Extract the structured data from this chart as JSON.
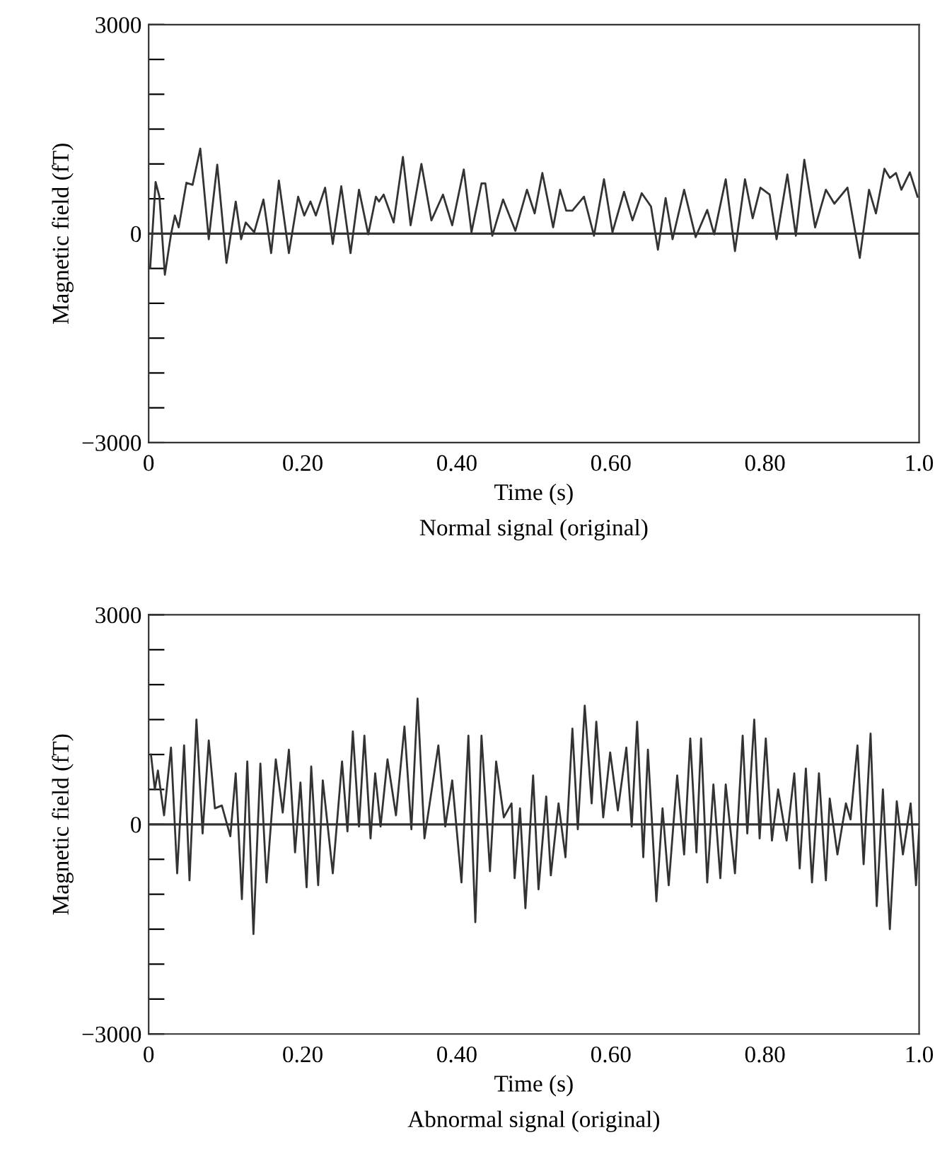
{
  "chart_data": [
    {
      "type": "line",
      "title": "Normal signal (original)",
      "xlabel": "Time (s)",
      "ylabel": "Magnetic field (fT)",
      "xlim": [
        0,
        1.0
      ],
      "ylim": [
        -3000,
        3000
      ],
      "xticks": [
        0,
        {
          "value": 0.2,
          "label": "0.20"
        },
        {
          "value": 0.4,
          "label": "0.40"
        },
        {
          "value": 0.6,
          "label": "0.60"
        },
        {
          "value": 0.8,
          "label": "0.80"
        },
        {
          "value": 1.0,
          "label": "1.0"
        }
      ],
      "yticks": [
        {
          "value": -3000,
          "label": "−3000"
        },
        {
          "value": -2500,
          "label": null
        },
        {
          "value": -2000,
          "label": null
        },
        {
          "value": -1500,
          "label": null
        },
        {
          "value": -1000,
          "label": null
        },
        {
          "value": -500,
          "label": null
        },
        0,
        {
          "value": 500,
          "label": null
        },
        {
          "value": 1000,
          "label": null
        },
        {
          "value": 1500,
          "label": null
        },
        {
          "value": 2000,
          "label": null
        },
        {
          "value": 2500,
          "label": null
        },
        3000
      ],
      "grid": false,
      "marker": "none",
      "line_style": "solid",
      "ref_lines": [
        {
          "axis": "y",
          "value": 0,
          "color": "#333333"
        }
      ],
      "series": [
        {
          "color": "#333333",
          "x": [
            0.002,
            0.009,
            0.014,
            0.021,
            0.029,
            0.034,
            0.039,
            0.049,
            0.057,
            0.067,
            0.078,
            0.089,
            0.101,
            0.113,
            0.12,
            0.126,
            0.137,
            0.149,
            0.159,
            0.169,
            0.182,
            0.194,
            0.202,
            0.21,
            0.217,
            0.229,
            0.239,
            0.25,
            0.262,
            0.273,
            0.285,
            0.295,
            0.299,
            0.305,
            0.318,
            0.33,
            0.34,
            0.354,
            0.367,
            0.382,
            0.394,
            0.409,
            0.419,
            0.432,
            0.437,
            0.446,
            0.46,
            0.476,
            0.491,
            0.501,
            0.511,
            0.525,
            0.534,
            0.542,
            0.55,
            0.565,
            0.578,
            0.591,
            0.602,
            0.617,
            0.628,
            0.64,
            0.652,
            0.661,
            0.671,
            0.68,
            0.695,
            0.71,
            0.725,
            0.734,
            0.749,
            0.761,
            0.774,
            0.784,
            0.794,
            0.806,
            0.815,
            0.829,
            0.84,
            0.851,
            0.865,
            0.879,
            0.89,
            0.907,
            0.923,
            0.935,
            0.944,
            0.955,
            0.962,
            0.97,
            0.977,
            0.988,
            0.998
          ],
          "values": [
            -490,
            740,
            530,
            -590,
            -10,
            260,
            90,
            730,
            700,
            1220,
            -80,
            990,
            -420,
            460,
            -80,
            160,
            20,
            490,
            -280,
            760,
            -280,
            530,
            260,
            460,
            260,
            660,
            -150,
            680,
            -280,
            630,
            -10,
            530,
            460,
            560,
            160,
            1100,
            120,
            1000,
            190,
            560,
            120,
            920,
            20,
            720,
            720,
            -30,
            490,
            40,
            630,
            290,
            870,
            90,
            630,
            330,
            330,
            530,
            -30,
            780,
            20,
            600,
            190,
            580,
            390,
            -230,
            510,
            -80,
            630,
            -50,
            340,
            -10,
            780,
            -250,
            780,
            220,
            660,
            560,
            -80,
            850,
            -30,
            1060,
            90,
            630,
            430,
            660,
            -350,
            630,
            290,
            930,
            800,
            870,
            630,
            880,
            530
          ]
        }
      ]
    },
    {
      "type": "line",
      "title": "Abnormal signal (original)",
      "xlabel": "Time (s)",
      "ylabel": "Magnetic field (fT)",
      "xlim": [
        0,
        1.0
      ],
      "ylim": [
        -3000,
        3000
      ],
      "xticks": [
        0,
        {
          "value": 0.2,
          "label": "0.20"
        },
        {
          "value": 0.4,
          "label": "0.40"
        },
        {
          "value": 0.6,
          "label": "0.60"
        },
        {
          "value": 0.8,
          "label": "0.80"
        },
        {
          "value": 1.0,
          "label": "1.0"
        }
      ],
      "yticks": [
        {
          "value": -3000,
          "label": "−3000"
        },
        {
          "value": -2500,
          "label": null
        },
        {
          "value": -2000,
          "label": null
        },
        {
          "value": -1500,
          "label": null
        },
        {
          "value": -1000,
          "label": null
        },
        {
          "value": -500,
          "label": null
        },
        0,
        {
          "value": 500,
          "label": null
        },
        {
          "value": 1000,
          "label": null
        },
        {
          "value": 1500,
          "label": null
        },
        {
          "value": 2000,
          "label": null
        },
        {
          "value": 2500,
          "label": null
        },
        3000
      ],
      "grid": false,
      "marker": "none",
      "line_style": "solid",
      "ref_lines": [
        {
          "axis": "y",
          "value": 0,
          "color": "#333333"
        }
      ],
      "series": [
        {
          "color": "#333333",
          "x": [
            0.003,
            0.008,
            0.012,
            0.02,
            0.029,
            0.037,
            0.046,
            0.053,
            0.062,
            0.07,
            0.078,
            0.086,
            0.095,
            0.106,
            0.113,
            0.121,
            0.128,
            0.136,
            0.145,
            0.153,
            0.165,
            0.174,
            0.182,
            0.19,
            0.197,
            0.205,
            0.211,
            0.22,
            0.226,
            0.239,
            0.251,
            0.258,
            0.265,
            0.273,
            0.28,
            0.288,
            0.294,
            0.301,
            0.31,
            0.321,
            0.332,
            0.341,
            0.349,
            0.358,
            0.376,
            0.385,
            0.394,
            0.406,
            0.415,
            0.424,
            0.432,
            0.443,
            0.451,
            0.461,
            0.471,
            0.475,
            0.482,
            0.489,
            0.499,
            0.506,
            0.516,
            0.522,
            0.532,
            0.541,
            0.55,
            0.557,
            0.566,
            0.575,
            0.581,
            0.59,
            0.599,
            0.609,
            0.62,
            0.627,
            0.634,
            0.642,
            0.648,
            0.659,
            0.667,
            0.675,
            0.686,
            0.695,
            0.703,
            0.711,
            0.717,
            0.725,
            0.733,
            0.742,
            0.749,
            0.761,
            0.771,
            0.777,
            0.786,
            0.793,
            0.801,
            0.809,
            0.817,
            0.828,
            0.838,
            0.845,
            0.853,
            0.861,
            0.87,
            0.879,
            0.884,
            0.894,
            0.905,
            0.911,
            0.92,
            0.928,
            0.937,
            0.945,
            0.953,
            0.962,
            0.971,
            0.979,
            0.989,
            0.996,
            1.0
          ],
          "values": [
            1000,
            500,
            770,
            130,
            1100,
            -700,
            1130,
            -800,
            1500,
            -130,
            1200,
            230,
            270,
            -170,
            730,
            -1070,
            900,
            -1570,
            870,
            -830,
            930,
            170,
            1070,
            -400,
            600,
            -900,
            830,
            -870,
            630,
            -700,
            900,
            -100,
            1330,
            -30,
            1270,
            -200,
            730,
            -30,
            930,
            130,
            1400,
            -70,
            1800,
            -200,
            1130,
            -30,
            630,
            -830,
            1270,
            -1400,
            1270,
            -670,
            900,
            100,
            300,
            -770,
            230,
            -1200,
            700,
            -930,
            400,
            -730,
            300,
            -470,
            1370,
            -70,
            1700,
            300,
            1470,
            100,
            1030,
            200,
            1100,
            -30,
            1470,
            -470,
            1070,
            -1100,
            230,
            -870,
            700,
            -430,
            1230,
            -400,
            1230,
            -830,
            570,
            -770,
            570,
            -700,
            1270,
            -130,
            1500,
            -200,
            1230,
            -230,
            500,
            -230,
            730,
            -630,
            800,
            -830,
            730,
            -800,
            370,
            -430,
            300,
            70,
            1130,
            -570,
            1300,
            -1170,
            500,
            -1500,
            330,
            -430,
            300,
            -870,
            -70
          ]
        }
      ]
    }
  ]
}
